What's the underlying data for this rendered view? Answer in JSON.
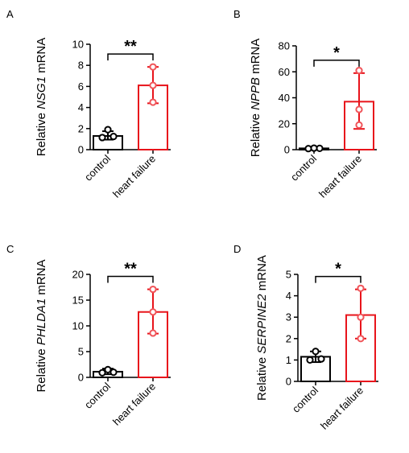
{
  "colors": {
    "control": "#000000",
    "heart_failure": "#e8141b",
    "point_hf": "#f0555a"
  },
  "chart_data": [
    {
      "type": "bar",
      "panel": "A",
      "ylabel_pre": "Relative ",
      "ylabel_gene": "NSG1",
      "ylabel_post": " mRNA",
      "categories": [
        "control",
        "heart failure"
      ],
      "values": [
        1.3,
        6.1
      ],
      "error": [
        [
          0.95,
          1.75
        ],
        [
          4.4,
          7.85
        ]
      ],
      "points": [
        [
          1.15,
          1.25,
          1.9
        ],
        [
          4.5,
          6.1,
          7.85
        ]
      ],
      "ylim": [
        0,
        10
      ],
      "yticks": [
        0,
        2,
        4,
        6,
        8,
        10
      ],
      "significance": "**"
    },
    {
      "type": "bar",
      "panel": "B",
      "ylabel_pre": "Relative ",
      "ylabel_gene": "NPPB",
      "ylabel_post": " mRNA",
      "categories": [
        "control",
        "heart failure"
      ],
      "values": [
        1.0,
        37
      ],
      "error": [
        [
          0.7,
          1.3
        ],
        [
          16,
          59
        ]
      ],
      "points": [
        [
          0.8,
          1.0,
          1.2
        ],
        [
          19,
          31,
          61
        ]
      ],
      "ylim": [
        0,
        80
      ],
      "yticks": [
        0,
        20,
        40,
        60,
        80
      ],
      "significance": "*"
    },
    {
      "type": "bar",
      "panel": "C",
      "ylabel_pre": "Relative ",
      "ylabel_gene": "PHLDA1",
      "ylabel_post": " mRNA",
      "categories": [
        "control",
        "heart failure"
      ],
      "values": [
        1.1,
        12.7
      ],
      "error": [
        [
          0.6,
          1.7
        ],
        [
          8.5,
          17.1
        ]
      ],
      "points": [
        [
          0.9,
          1.0,
          1.5
        ],
        [
          8.6,
          12.7,
          17.1
        ]
      ],
      "ylim": [
        0,
        20
      ],
      "yticks": [
        0,
        5,
        10,
        15,
        20
      ],
      "significance": "**"
    },
    {
      "type": "bar",
      "panel": "D",
      "ylabel_pre": "Relative ",
      "ylabel_gene": "SERPINE2",
      "ylabel_post": " mRNA",
      "categories": [
        "control",
        "heart failure"
      ],
      "values": [
        1.15,
        3.1
      ],
      "error": [
        [
          0.9,
          1.4
        ],
        [
          2.0,
          4.3
        ]
      ],
      "points": [
        [
          1.0,
          1.05,
          1.4
        ],
        [
          2.0,
          3.0,
          4.35
        ]
      ],
      "ylim": [
        0,
        5
      ],
      "yticks": [
        0,
        1,
        2,
        3,
        4,
        5
      ],
      "significance": "*"
    }
  ]
}
